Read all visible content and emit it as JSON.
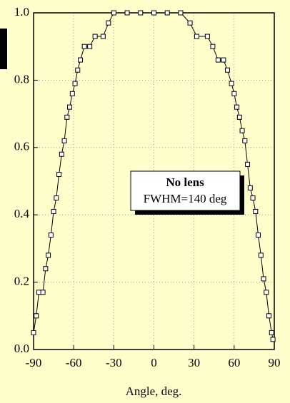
{
  "chart_data": {
    "type": "line",
    "x_label": "Angle, deg.",
    "annotation": {
      "title": "No lens",
      "text": "FWHM=140 deg"
    },
    "x": [
      -90,
      -88,
      -86,
      -83,
      -81,
      -79,
      -77,
      -75,
      -73,
      -71,
      -69,
      -67,
      -65,
      -63,
      -61,
      -59,
      -57,
      -55,
      -52,
      -48,
      -44,
      -38,
      -34,
      -30,
      -20,
      -10,
      0,
      10,
      20,
      27,
      32,
      40,
      44,
      48,
      52,
      55,
      58,
      60,
      62,
      64,
      66,
      68,
      70,
      72,
      74,
      76,
      78,
      80,
      82,
      84,
      86,
      88,
      89
    ],
    "series": [
      {
        "color": "#000000",
        "values": [
          0.05,
          0.1,
          0.17,
          0.17,
          0.24,
          0.28,
          0.34,
          0.41,
          0.45,
          0.52,
          0.58,
          0.62,
          0.69,
          0.72,
          0.76,
          0.79,
          0.83,
          0.86,
          0.9,
          0.9,
          0.93,
          0.93,
          0.97,
          1.0,
          1.0,
          1.0,
          1.0,
          1.0,
          1.0,
          0.97,
          0.93,
          0.93,
          0.9,
          0.86,
          0.86,
          0.83,
          0.79,
          0.76,
          0.72,
          0.69,
          0.65,
          0.62,
          0.55,
          0.48,
          0.45,
          0.41,
          0.34,
          0.28,
          0.21,
          0.17,
          0.1,
          0.05,
          0.03
        ]
      }
    ],
    "xlim": [
      -90,
      90
    ],
    "xticks": [
      -90,
      -60,
      -30,
      0,
      30,
      60,
      90
    ],
    "ylim": [
      0,
      1
    ],
    "yticks": [
      {
        "value": 0,
        "label": "0.0"
      },
      0.2,
      0.4,
      0.6,
      0.8,
      {
        "value": 1,
        "label": "1.0"
      }
    ],
    "grid": true
  }
}
